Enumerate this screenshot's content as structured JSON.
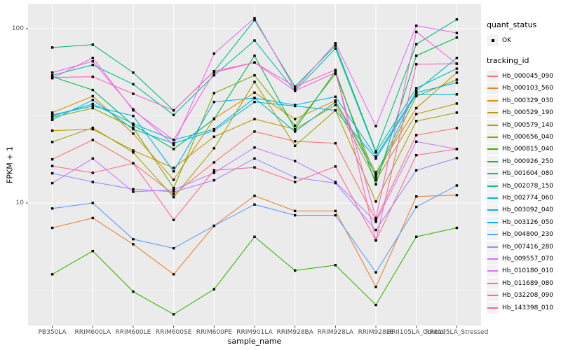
{
  "chart_data": {
    "type": "line",
    "title": "",
    "xlabel": "sample_name",
    "ylabel": "FPKM + 1",
    "y_scale": "log10",
    "ylim": [
      2,
      138
    ],
    "y_ticks": [
      10,
      100
    ],
    "y_minor_ticks": [
      3.162,
      31.62
    ],
    "grid": "on",
    "panel_background": "#EBEBEB",
    "gridline_color": "#FFFFFF",
    "point_color": "#000000",
    "legend_position": "right",
    "legend": {
      "quant_status_title": "quant_status",
      "quant_status_items": [
        {
          "label": "OK",
          "symbol": "point"
        }
      ],
      "tracking_id_title": "tracking_id"
    },
    "categories": [
      "PB350LA",
      "RRIM600LA",
      "RRIM600LE",
      "RRIM600SE",
      "RRIM600PE",
      "RRIM901LA",
      "RRIM928BA",
      "RRIM928LA",
      "RRIM928LE",
      "RRII105LA_Control",
      "RRII105LA_Stressed"
    ],
    "series": [
      {
        "name": "Hb_000045_090",
        "color": "#F8766D",
        "values": [
          17.8,
          23,
          16.9,
          11.2,
          17.1,
          25.7,
          22.6,
          22,
          8.0,
          24.5,
          26.9
        ]
      },
      {
        "name": "Hb_000103_560",
        "color": "#EA8331",
        "values": [
          7.2,
          8.2,
          5.8,
          3.9,
          7.4,
          11.0,
          9.0,
          9.0,
          3.3,
          10.9,
          11.1
        ]
      },
      {
        "name": "Hb_000329_030",
        "color": "#D89000",
        "values": [
          33,
          41,
          25,
          13.6,
          30.5,
          43,
          30.3,
          38.7,
          15.0,
          35,
          56
        ]
      },
      {
        "name": "Hb_000529_190",
        "color": "#C09B00",
        "values": [
          26,
          26.5,
          20,
          15.9,
          24,
          30.3,
          26.5,
          36.5,
          13.5,
          32.4,
          37.2
        ]
      },
      {
        "name": "Hb_000579_140",
        "color": "#A3A500",
        "values": [
          22.4,
          27,
          19.5,
          10.8,
          20.6,
          49.5,
          21.3,
          34,
          10.2,
          29.5,
          33
        ]
      },
      {
        "name": "Hb_000656_040",
        "color": "#7CAE00",
        "values": [
          31,
          35,
          27,
          12.2,
          42.7,
          54,
          27.8,
          55,
          14.0,
          41,
          51
        ]
      },
      {
        "name": "Hb_000815_040",
        "color": "#39B600",
        "values": [
          3.9,
          5.3,
          3.1,
          2.3,
          3.2,
          6.4,
          4.1,
          4.4,
          2.6,
          6.4,
          7.2
        ]
      },
      {
        "name": "Hb_000926_250",
        "color": "#00BB4E",
        "values": [
          53,
          44.5,
          28,
          20.4,
          30.3,
          70,
          26.5,
          57,
          12.8,
          70,
          89
        ]
      },
      {
        "name": "Hb_001604_080",
        "color": "#00BF7D",
        "values": [
          78,
          81,
          56,
          34,
          57,
          112,
          46.5,
          80,
          19.8,
          81.5,
          113
        ]
      },
      {
        "name": "Hb_002078_150",
        "color": "#00C1A3",
        "values": [
          54,
          62,
          48,
          32,
          54,
          85.5,
          44,
          77,
          19.5,
          45.6,
          59
        ]
      },
      {
        "name": "Hb_002774_060",
        "color": "#00BFC4",
        "values": [
          31.5,
          37,
          28.5,
          23,
          26.5,
          40,
          25.7,
          38,
          14.5,
          44,
          68
        ]
      },
      {
        "name": "Hb_003092_040",
        "color": "#00BAE0",
        "values": [
          30,
          39,
          26.5,
          22,
          26,
          38,
          36,
          34,
          18.0,
          42,
          42
        ]
      },
      {
        "name": "Hb_003126_050",
        "color": "#00B0F6",
        "values": [
          32,
          36,
          31.6,
          15.2,
          38,
          40,
          36.5,
          40.7,
          18.5,
          43,
          49
        ]
      },
      {
        "name": "Hb_004800_230",
        "color": "#619CFF",
        "values": [
          9.3,
          10.0,
          6.2,
          5.5,
          7.4,
          9.8,
          8.5,
          8.5,
          4.0,
          9.5,
          12.6
        ]
      },
      {
        "name": "Hb_007416_280",
        "color": "#9590FF",
        "values": [
          14.8,
          13.2,
          12.0,
          11.6,
          13.5,
          18.0,
          14.0,
          13.0,
          7.0,
          15.4,
          18.1
        ]
      },
      {
        "name": "Hb_009557_070",
        "color": "#C77CFF",
        "values": [
          13.0,
          18,
          11.6,
          11.9,
          14.9,
          20.8,
          17.4,
          13.2,
          7.8,
          22.5,
          20.4
        ]
      },
      {
        "name": "Hb_010180_010",
        "color": "#E76BF3",
        "values": [
          56,
          65,
          34.5,
          21.5,
          72,
          115,
          45,
          82.5,
          27.6,
          104,
          94.5
        ]
      },
      {
        "name": "Hb_011689_080",
        "color": "#FA62DB",
        "values": [
          52,
          68,
          34,
          23,
          56,
          64,
          44,
          56,
          8.2,
          96,
          63
        ]
      },
      {
        "name": "Hb_032208_090",
        "color": "#FF62BC",
        "values": [
          52.5,
          53,
          42.3,
          34,
          57,
          64,
          46.5,
          58,
          6.1,
          62.5,
          63
        ]
      },
      {
        "name": "Hb_143398_010",
        "color": "#FF6A98",
        "values": [
          16.3,
          14.9,
          16.9,
          8.0,
          15.4,
          16,
          13.2,
          16.2,
          6.1,
          18.8,
          20.4
        ]
      }
    ]
  }
}
